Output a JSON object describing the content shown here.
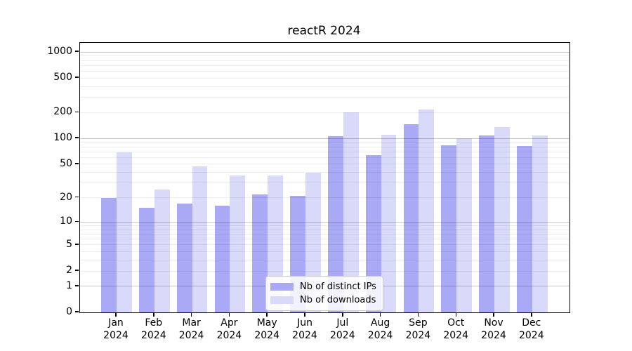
{
  "chart_data": {
    "type": "bar",
    "title": "reactR 2024",
    "yscale": "log1p",
    "ylim": [
      0,
      1275
    ],
    "yticks": [
      1000,
      500,
      200,
      100,
      50,
      20,
      10,
      5,
      2,
      1,
      0
    ],
    "major_gridlines": [
      1,
      10,
      100,
      1000
    ],
    "minor_gridlines": [
      2,
      3,
      4,
      5,
      6,
      7,
      8,
      9,
      20,
      30,
      40,
      50,
      60,
      70,
      80,
      90,
      200,
      300,
      400,
      500,
      600,
      700,
      800,
      900
    ],
    "categories": [
      {
        "month": "Jan",
        "year": "2024"
      },
      {
        "month": "Feb",
        "year": "2024"
      },
      {
        "month": "Mar",
        "year": "2024"
      },
      {
        "month": "Apr",
        "year": "2024"
      },
      {
        "month": "May",
        "year": "2024"
      },
      {
        "month": "Jun",
        "year": "2024"
      },
      {
        "month": "Jul",
        "year": "2024"
      },
      {
        "month": "Aug",
        "year": "2024"
      },
      {
        "month": "Sep",
        "year": "2024"
      },
      {
        "month": "Oct",
        "year": "2024"
      },
      {
        "month": "Nov",
        "year": "2024"
      },
      {
        "month": "Dec",
        "year": "2024"
      }
    ],
    "series": [
      {
        "name": "Nb of distinct IPs",
        "color": "#a9a9f6",
        "values": [
          20,
          15,
          17,
          16,
          22,
          21,
          106,
          64,
          145,
          84,
          108,
          82
        ]
      },
      {
        "name": "Nb of downloads",
        "color": "#d9daf9",
        "values": [
          69,
          25,
          47,
          37,
          37,
          40,
          200,
          111,
          218,
          100,
          136,
          108
        ]
      }
    ],
    "legend_position": "lower center inside plot",
    "grid": "on"
  },
  "colors": {
    "frame": "#000000",
    "text": "#000000",
    "major_grid": "#c7c7c7",
    "minor_grid": "#ededed",
    "legend_border": "#cccccc",
    "legend_background": "#ffffff"
  }
}
